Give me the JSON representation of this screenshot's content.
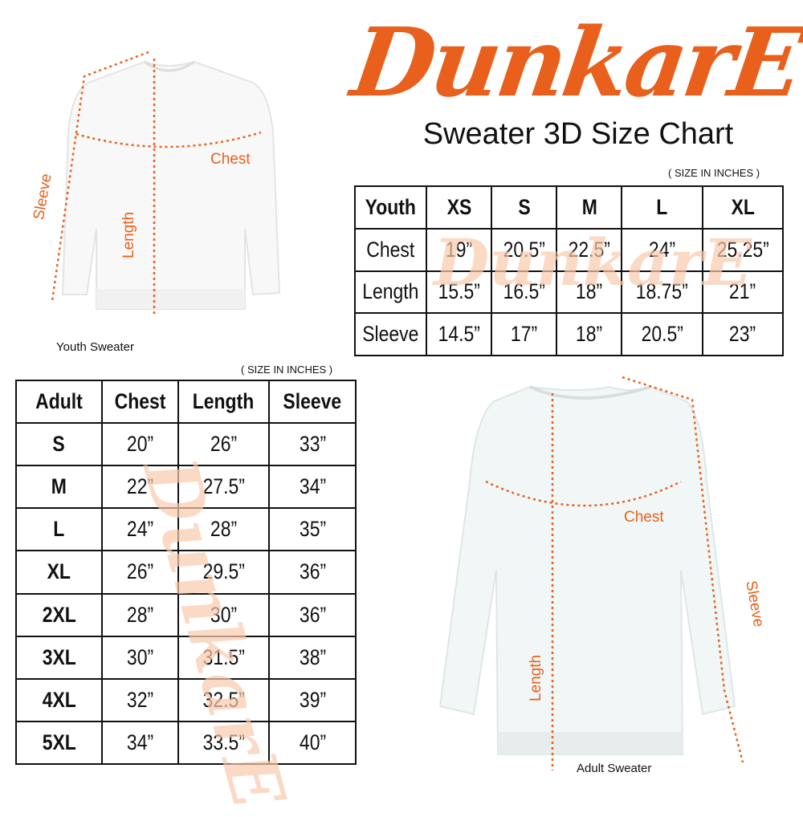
{
  "brand": {
    "logo_text": "DunkarE",
    "color": "#e8601c"
  },
  "title": "Sweater 3D Size Chart",
  "youth": {
    "units": "( SIZE IN INCHES )",
    "caption": "Youth Sweater",
    "labels": {
      "chest": "Chest",
      "length": "Length",
      "sleeve": "Sleeve"
    },
    "header": [
      "Youth",
      "XS",
      "S",
      "M",
      "L",
      "XL"
    ],
    "rows": [
      [
        "Chest",
        "19”",
        "20.5”",
        "22.5”",
        "24”",
        "25.25”"
      ],
      [
        "Length",
        "15.5”",
        "16.5”",
        "18”",
        "18.75”",
        "21”"
      ],
      [
        "Sleeve",
        "14.5”",
        "17”",
        "18”",
        "20.5”",
        "23”"
      ]
    ]
  },
  "adult": {
    "units": "( SIZE IN INCHES )",
    "caption": "Adult Sweater",
    "labels": {
      "chest": "Chest",
      "length": "Length",
      "sleeve": "Sleeve"
    },
    "header": [
      "Adult",
      "Chest",
      "Length",
      "Sleeve"
    ],
    "rows": [
      [
        "S",
        "20”",
        "26”",
        "33”"
      ],
      [
        "M",
        "22”",
        "27.5”",
        "34”"
      ],
      [
        "L",
        "24”",
        "28”",
        "35”"
      ],
      [
        "XL",
        "26”",
        "29.5”",
        "36”"
      ],
      [
        "2XL",
        "28”",
        "30”",
        "36”"
      ],
      [
        "3XL",
        "30”",
        "31.5”",
        "38”"
      ],
      [
        "4XL",
        "32”",
        "32.5”",
        "39”"
      ],
      [
        "5XL",
        "34”",
        "33.5”",
        "40”"
      ]
    ]
  }
}
